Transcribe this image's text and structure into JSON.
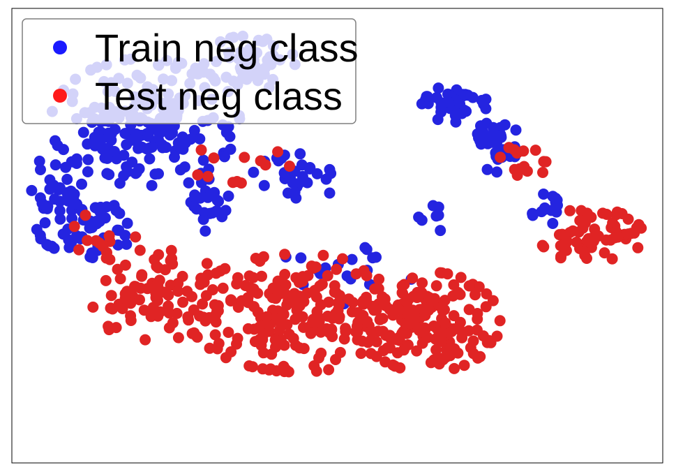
{
  "colors": {
    "train": "#2424e0",
    "test": "#e02424",
    "legend_train_marker": "#1a1aff",
    "legend_test_marker": "#ff1a1a"
  },
  "chart_data": {
    "type": "scatter",
    "title": "",
    "xlabel": "",
    "ylabel": "",
    "xlim": [
      0,
      100
    ],
    "ylim": [
      0,
      100
    ],
    "grid": false,
    "legend": {
      "position": "top-left",
      "entries": [
        "Train neg class",
        "Test neg class"
      ]
    },
    "series": [
      {
        "name": "Train neg class",
        "color": "#2424e0",
        "clusters": [
          {
            "cx": 20.5,
            "cy": 75,
            "rx": 14.5,
            "ry": 14,
            "n": 210
          },
          {
            "cx": 7.5,
            "cy": 58,
            "rx": 5,
            "ry": 11,
            "n": 45
          },
          {
            "cx": 13.5,
            "cy": 52,
            "rx": 5,
            "ry": 7,
            "n": 40
          },
          {
            "cx": 36.5,
            "cy": 88,
            "rx": 7,
            "ry": 6,
            "n": 55
          },
          {
            "cx": 44,
            "cy": 63,
            "rx": 7,
            "ry": 5,
            "n": 30
          },
          {
            "cx": 30,
            "cy": 57,
            "rx": 5,
            "ry": 6,
            "n": 25
          },
          {
            "cx": 68,
            "cy": 79,
            "rx": 5,
            "ry": 4,
            "n": 40
          },
          {
            "cx": 74.5,
            "cy": 70,
            "rx": 3.5,
            "ry": 6,
            "n": 40
          },
          {
            "cx": 82,
            "cy": 56,
            "rx": 3,
            "ry": 4,
            "n": 14
          },
          {
            "cx": 64.5,
            "cy": 54,
            "rx": 2,
            "ry": 4,
            "n": 8
          },
          {
            "cx": 50,
            "cy": 43,
            "rx": 12,
            "ry": 8,
            "n": 18
          }
        ]
      },
      {
        "name": "Test neg class",
        "color": "#e02424",
        "clusters": [
          {
            "cx": 44,
            "cy": 33,
            "rx": 17,
            "ry": 13,
            "n": 220
          },
          {
            "cx": 64,
            "cy": 31,
            "rx": 11,
            "ry": 11,
            "n": 150
          },
          {
            "cx": 22,
            "cy": 37,
            "rx": 11,
            "ry": 10,
            "n": 80
          },
          {
            "cx": 89,
            "cy": 50,
            "rx": 8,
            "ry": 6,
            "n": 60
          },
          {
            "cx": 78.5,
            "cy": 66,
            "rx": 4,
            "ry": 4,
            "n": 14
          },
          {
            "cx": 36,
            "cy": 65,
            "rx": 9,
            "ry": 6,
            "n": 12
          },
          {
            "cx": 14,
            "cy": 50,
            "rx": 5,
            "ry": 6,
            "n": 12
          }
        ]
      }
    ]
  }
}
